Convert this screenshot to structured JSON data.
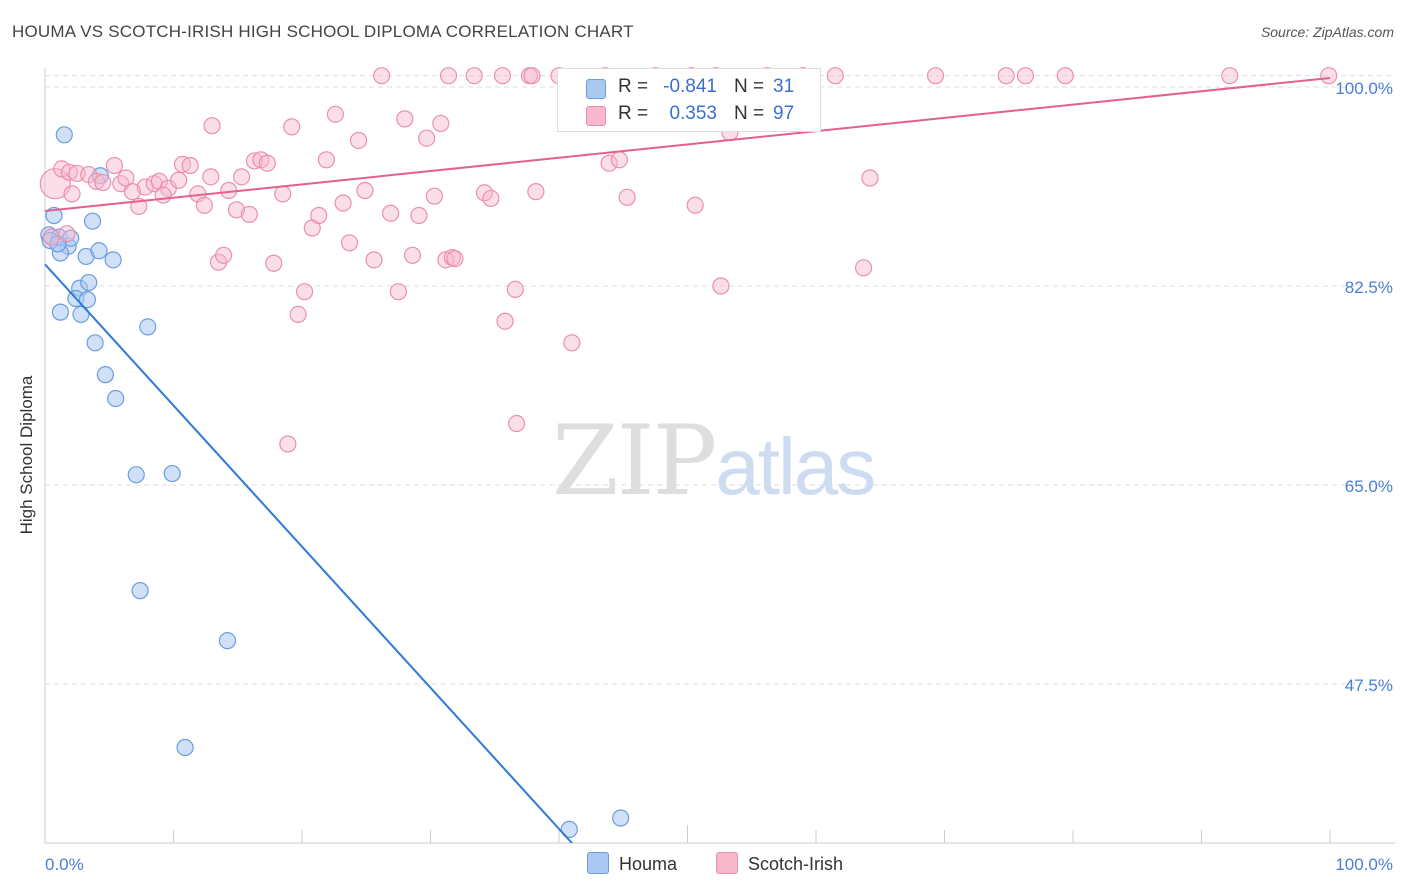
{
  "title": "HOUMA VS SCOTCH-IRISH HIGH SCHOOL DIPLOMA CORRELATION CHART",
  "source": "Source: ZipAtlas.com",
  "watermark": {
    "zip": "ZIP",
    "atlas": "atlas"
  },
  "legend": {
    "houma": {
      "r_label": "R =",
      "r_value": "-0.841",
      "n_label": "N =",
      "n_value": "31"
    },
    "scotch_irish": {
      "r_label": "R =",
      "r_value": "0.353",
      "n_label": "N =",
      "n_value": "97"
    }
  },
  "colors": {
    "houma_fill": "#aac8f0",
    "houma_stroke": "#6a9de0",
    "houma_line": "#2f78d8",
    "scotch_fill": "#f7b8cc",
    "scotch_stroke": "#ec8fae",
    "scotch_line": "#e4608e",
    "grid": "#dddddd",
    "axis": "#cccccc",
    "tick_text": "#4a7fd4"
  },
  "chart_data": {
    "type": "scatter",
    "title": "HOUMA VS SCOTCH-IRISH HIGH SCHOOL DIPLOMA CORRELATION CHART",
    "xlabel": "",
    "ylabel": "High School Diploma",
    "xlim": [
      0,
      100
    ],
    "ylim": [
      33.5,
      101.5
    ],
    "x_tick_labels": [
      "0.0%",
      "100.0%"
    ],
    "y_ticks": [
      47.5,
      65.0,
      82.5,
      100.0
    ],
    "y_tick_labels": [
      "47.5%",
      "65.0%",
      "82.5%",
      "100.0%"
    ],
    "grid": true,
    "series": [
      {
        "name": "Houma",
        "trend": {
          "x": [
            0,
            41
          ],
          "y": [
            84.4,
            33.5
          ]
        },
        "points": [
          {
            "x": 1.5,
            "y": 95.8
          },
          {
            "x": 0.3,
            "y": 87.0
          },
          {
            "x": 0.7,
            "y": 88.7
          },
          {
            "x": 1.1,
            "y": 86.8
          },
          {
            "x": 1.8,
            "y": 86.0
          },
          {
            "x": 2.0,
            "y": 86.7
          },
          {
            "x": 1.2,
            "y": 85.4
          },
          {
            "x": 3.7,
            "y": 88.2
          },
          {
            "x": 4.3,
            "y": 92.2
          },
          {
            "x": 3.2,
            "y": 85.1
          },
          {
            "x": 4.2,
            "y": 85.6
          },
          {
            "x": 5.3,
            "y": 84.8
          },
          {
            "x": 2.7,
            "y": 82.3
          },
          {
            "x": 3.4,
            "y": 82.8
          },
          {
            "x": 2.4,
            "y": 81.4
          },
          {
            "x": 3.3,
            "y": 81.3
          },
          {
            "x": 1.2,
            "y": 80.2
          },
          {
            "x": 2.8,
            "y": 80.0
          },
          {
            "x": 8.0,
            "y": 78.9
          },
          {
            "x": 3.9,
            "y": 77.5
          },
          {
            "x": 4.7,
            "y": 74.7
          },
          {
            "x": 5.5,
            "y": 72.6
          },
          {
            "x": 7.1,
            "y": 65.9
          },
          {
            "x": 9.9,
            "y": 66.0
          },
          {
            "x": 7.4,
            "y": 55.7
          },
          {
            "x": 14.2,
            "y": 51.3
          },
          {
            "x": 10.9,
            "y": 41.9
          },
          {
            "x": 40.8,
            "y": 34.7
          },
          {
            "x": 44.8,
            "y": 35.7
          },
          {
            "x": 0.4,
            "y": 86.5
          },
          {
            "x": 1.0,
            "y": 86.2
          }
        ]
      },
      {
        "name": "Scotch-Irish",
        "trend": {
          "x": [
            0,
            100
          ],
          "y": [
            89.1,
            100.8
          ]
        },
        "points": [
          {
            "x": 0.8,
            "y": 91.5,
            "big": true
          },
          {
            "x": 1.3,
            "y": 92.8
          },
          {
            "x": 1.9,
            "y": 92.5
          },
          {
            "x": 2.5,
            "y": 92.4
          },
          {
            "x": 3.4,
            "y": 92.3
          },
          {
            "x": 0.5,
            "y": 86.8
          },
          {
            "x": 4.0,
            "y": 91.7
          },
          {
            "x": 4.5,
            "y": 91.6
          },
          {
            "x": 5.4,
            "y": 93.1
          },
          {
            "x": 5.9,
            "y": 91.5
          },
          {
            "x": 6.3,
            "y": 92.0
          },
          {
            "x": 7.3,
            "y": 89.5
          },
          {
            "x": 7.8,
            "y": 91.2
          },
          {
            "x": 8.5,
            "y": 91.5
          },
          {
            "x": 8.9,
            "y": 91.7
          },
          {
            "x": 9.6,
            "y": 91.1
          },
          {
            "x": 10.4,
            "y": 91.8
          },
          {
            "x": 10.7,
            "y": 93.2
          },
          {
            "x": 11.3,
            "y": 93.1
          },
          {
            "x": 11.9,
            "y": 90.6
          },
          {
            "x": 12.4,
            "y": 89.6
          },
          {
            "x": 12.9,
            "y": 92.1
          },
          {
            "x": 13.5,
            "y": 84.6
          },
          {
            "x": 13.9,
            "y": 85.2
          },
          {
            "x": 14.3,
            "y": 90.9
          },
          {
            "x": 14.9,
            "y": 89.2
          },
          {
            "x": 15.3,
            "y": 92.1
          },
          {
            "x": 15.9,
            "y": 88.8
          },
          {
            "x": 16.3,
            "y": 93.5
          },
          {
            "x": 16.8,
            "y": 93.6
          },
          {
            "x": 17.3,
            "y": 93.3
          },
          {
            "x": 17.8,
            "y": 84.5
          },
          {
            "x": 18.5,
            "y": 90.6
          },
          {
            "x": 19.2,
            "y": 96.5
          },
          {
            "x": 19.7,
            "y": 80.0
          },
          {
            "x": 20.2,
            "y": 82.0
          },
          {
            "x": 18.9,
            "y": 68.6
          },
          {
            "x": 20.8,
            "y": 87.6
          },
          {
            "x": 21.3,
            "y": 88.7
          },
          {
            "x": 21.9,
            "y": 93.6
          },
          {
            "x": 22.6,
            "y": 97.6
          },
          {
            "x": 23.2,
            "y": 89.8
          },
          {
            "x": 23.7,
            "y": 86.3
          },
          {
            "x": 24.4,
            "y": 95.3
          },
          {
            "x": 24.9,
            "y": 90.9
          },
          {
            "x": 25.6,
            "y": 84.8
          },
          {
            "x": 26.2,
            "y": 101.0
          },
          {
            "x": 26.9,
            "y": 88.9
          },
          {
            "x": 27.5,
            "y": 82.0
          },
          {
            "x": 28.0,
            "y": 97.2
          },
          {
            "x": 28.6,
            "y": 85.2
          },
          {
            "x": 29.1,
            "y": 88.7
          },
          {
            "x": 29.7,
            "y": 95.5
          },
          {
            "x": 30.3,
            "y": 90.4
          },
          {
            "x": 30.8,
            "y": 96.8
          },
          {
            "x": 31.2,
            "y": 84.8
          },
          {
            "x": 31.7,
            "y": 85.0
          },
          {
            "x": 31.9,
            "y": 84.9
          },
          {
            "x": 31.4,
            "y": 101.0
          },
          {
            "x": 33.4,
            "y": 101.0
          },
          {
            "x": 34.2,
            "y": 90.7
          },
          {
            "x": 34.7,
            "y": 90.2
          },
          {
            "x": 35.6,
            "y": 101.0
          },
          {
            "x": 35.8,
            "y": 79.4
          },
          {
            "x": 36.6,
            "y": 82.2
          },
          {
            "x": 36.7,
            "y": 70.4
          },
          {
            "x": 37.7,
            "y": 101.0
          },
          {
            "x": 37.9,
            "y": 101.0
          },
          {
            "x": 38.2,
            "y": 90.8
          },
          {
            "x": 40.0,
            "y": 101.0
          },
          {
            "x": 41.0,
            "y": 77.5
          },
          {
            "x": 43.6,
            "y": 101.0
          },
          {
            "x": 43.9,
            "y": 93.3
          },
          {
            "x": 44.7,
            "y": 93.6
          },
          {
            "x": 45.3,
            "y": 90.3
          },
          {
            "x": 47.5,
            "y": 101.0
          },
          {
            "x": 50.3,
            "y": 101.0
          },
          {
            "x": 50.6,
            "y": 89.6
          },
          {
            "x": 52.2,
            "y": 101.0
          },
          {
            "x": 52.6,
            "y": 82.5
          },
          {
            "x": 53.3,
            "y": 96.0
          },
          {
            "x": 56.2,
            "y": 101.0
          },
          {
            "x": 59.0,
            "y": 101.0
          },
          {
            "x": 61.5,
            "y": 101.0
          },
          {
            "x": 63.7,
            "y": 84.1
          },
          {
            "x": 64.2,
            "y": 92.0
          },
          {
            "x": 69.3,
            "y": 101.0
          },
          {
            "x": 74.8,
            "y": 101.0
          },
          {
            "x": 76.3,
            "y": 101.0
          },
          {
            "x": 79.4,
            "y": 101.0
          },
          {
            "x": 92.2,
            "y": 101.0
          },
          {
            "x": 99.9,
            "y": 101.0
          },
          {
            "x": 1.7,
            "y": 87.1
          },
          {
            "x": 2.1,
            "y": 90.6
          },
          {
            "x": 13.0,
            "y": 96.6
          },
          {
            "x": 6.8,
            "y": 90.8
          },
          {
            "x": 9.2,
            "y": 90.5
          }
        ]
      }
    ]
  },
  "legend_bottom": [
    "Houma",
    "Scotch-Irish"
  ]
}
